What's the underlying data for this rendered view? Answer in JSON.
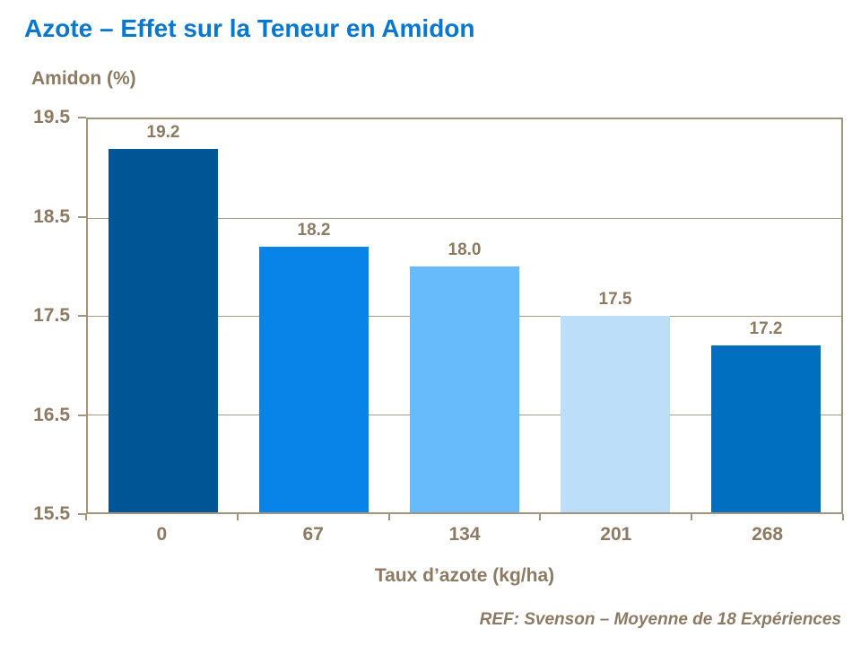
{
  "slide": {
    "title": "Azote – Effet sur la Teneur en Amidon",
    "footer": "REF: Svenson – Moyenne de 18 Expériences"
  },
  "chart_data": {
    "type": "bar",
    "title": "Azote – Effet sur la Teneur en Amidon",
    "ylabel": "Amidon (%)",
    "xlabel": "Taux d’azote (kg/ha)",
    "categories": [
      "0",
      "67",
      "134",
      "201",
      "268"
    ],
    "values": [
      19.2,
      18.2,
      18.0,
      17.5,
      17.2
    ],
    "data_labels": [
      "19.2",
      "18.2",
      "18.0",
      "17.5",
      "17.2"
    ],
    "bar_colors": [
      "#005694",
      "#0884E8",
      "#67BBFA",
      "#BCDEF8",
      "#006FC0"
    ],
    "ylim": [
      15.5,
      19.5
    ],
    "yticks": [
      19.5,
      18.5,
      17.5,
      16.5,
      15.5
    ],
    "ytick_labels": [
      "19.5",
      "18.5",
      "17.5",
      "16.5",
      "15.5"
    ],
    "grid": true,
    "legend": false,
    "source": "REF: Svenson – Moyenne de 18 Expériences",
    "colors": {
      "title": "#0877CE",
      "text": "#8C7B62",
      "axis": "#A1947E",
      "gridline": "#A89B85",
      "background": "#FFFFFF"
    }
  }
}
